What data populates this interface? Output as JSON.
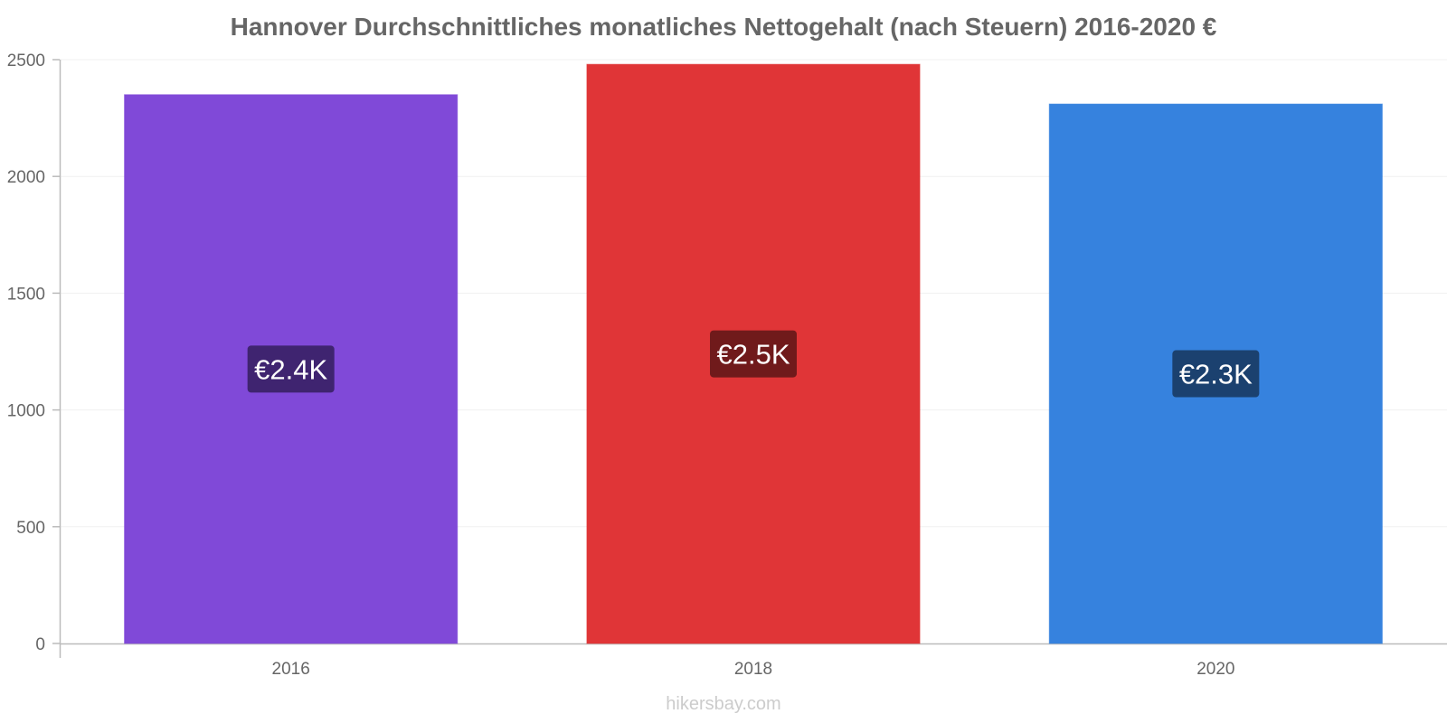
{
  "chart_data": {
    "type": "bar",
    "title": "Hannover Durchschnittliches monatliches Nettogehalt (nach Steuern) 2016-2020 €",
    "categories": [
      "2016",
      "2018",
      "2020"
    ],
    "values": [
      2350,
      2480,
      2310
    ],
    "data_labels": [
      "€2.4K",
      "€2.5K",
      "€2.3K"
    ],
    "bar_colors": [
      "#8049d8",
      "#e03537",
      "#3682de"
    ],
    "label_bg_colors": [
      "#3f2470",
      "#701a1b",
      "#1b416f"
    ],
    "ylim": [
      0,
      2500
    ],
    "yticks": [
      0,
      500,
      1000,
      1500,
      2000,
      2500
    ],
    "xlabel": "",
    "ylabel": "",
    "grid": true,
    "legend": "none"
  },
  "footer": {
    "source": "hikersbay.com"
  }
}
